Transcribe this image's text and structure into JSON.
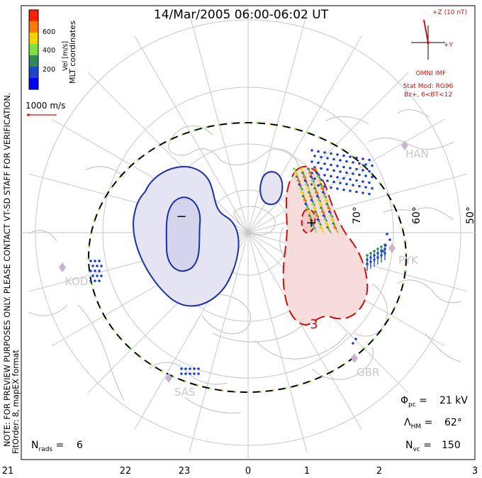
{
  "title": "14/Mar/2005 06:00-06:02 UT",
  "side_note_line1": "NOTE: FOR PREVIEW PURPOSES ONLY. PLEASE CONTACT VT-SD STAFF FOR VERIFICATION.",
  "side_note_line2": "FitOrder: 8, mapEX format",
  "colorbar": {
    "title": "MLT coordinates",
    "unit_label": "Vel [m/s]",
    "ticks": [
      "600",
      "400",
      "200"
    ],
    "colors": [
      "#ff2000",
      "#ff7a00",
      "#ffd000",
      "#80e040",
      "#2e8b57",
      "#1c48c8",
      "#0000ff"
    ]
  },
  "scale_vector_label": "1000 m/s",
  "imf": {
    "z_label": "+Z (10 nT)",
    "y_label": "+Y",
    "omni": "OMNI IMF",
    "stat_mod": "Stat Mod: RG96",
    "conditions": "Bz+, 6<BT<12"
  },
  "latitude_labels": [
    "70°",
    "60°",
    "50°"
  ],
  "radar_sites": [
    "HAN",
    "PYK",
    "KOD",
    "SAS",
    "GBR"
  ],
  "mlt_labels": [
    "21",
    "22",
    "23",
    "0",
    "1",
    "2",
    "3"
  ],
  "cell_markers": {
    "min": "−",
    "max": "+"
  },
  "contour_label": "3",
  "stats": {
    "phi_pc": "21 kV",
    "lambda_hm": "62°",
    "n_vc": "150",
    "n_rads": "6"
  },
  "colors": {
    "negative_cell_fill": "#e4e4f2",
    "negative_cell_line": "#1a2fa8",
    "positive_cell_fill": "#f7dcdc",
    "positive_cell_line": "#cc1010",
    "coastline": "#c8c8c8",
    "grid": "#c8c8c8",
    "heppner_maynard": "#000000",
    "hm_dots": "#90e040"
  }
}
